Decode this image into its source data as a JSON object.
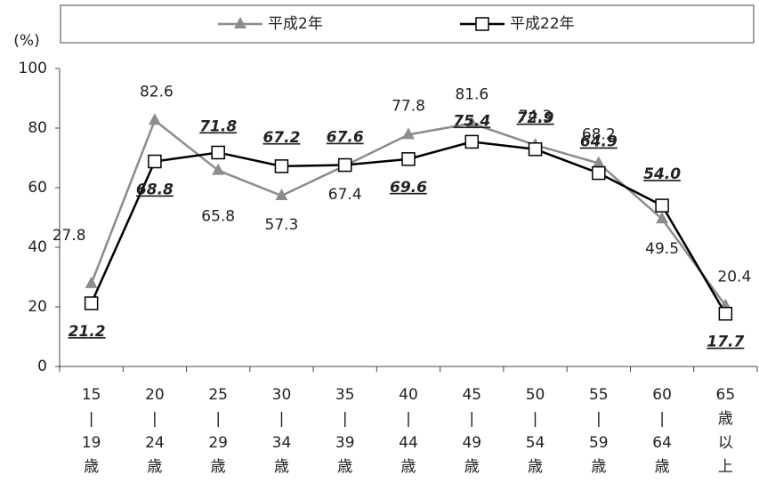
{
  "chart_data": {
    "type": "line",
    "y_label": "(%)",
    "categories": [
      [
        "15",
        "|",
        "19",
        "歳"
      ],
      [
        "20",
        "|",
        "24",
        "歳"
      ],
      [
        "25",
        "|",
        "29",
        "歳"
      ],
      [
        "30",
        "|",
        "34",
        "歳"
      ],
      [
        "35",
        "|",
        "39",
        "歳"
      ],
      [
        "40",
        "|",
        "44",
        "歳"
      ],
      [
        "45",
        "|",
        "49",
        "歳"
      ],
      [
        "50",
        "|",
        "54",
        "歳"
      ],
      [
        "55",
        "|",
        "59",
        "歳"
      ],
      [
        "60",
        "|",
        "64",
        "歳"
      ],
      [
        "65",
        "歳",
        "以",
        "上"
      ]
    ],
    "series": [
      {
        "name": "平成2年",
        "color": "#8c8c8c",
        "marker": "triangle",
        "values": [
          27.8,
          82.6,
          65.8,
          57.3,
          67.4,
          77.8,
          81.6,
          74.3,
          68.2,
          49.5,
          20.4
        ],
        "value_labels": [
          "27.8",
          "82.6",
          "65.8",
          "57.3",
          "67.4",
          "77.8",
          "81.6",
          "74.3",
          "68.2",
          "49.5",
          "20.4"
        ]
      },
      {
        "name": "平成22年",
        "color": "#000000",
        "marker": "square",
        "values": [
          21.2,
          68.8,
          71.8,
          67.2,
          67.6,
          69.6,
          75.4,
          72.9,
          64.9,
          54.0,
          17.7
        ],
        "value_labels": [
          "21.2",
          "68.8",
          "71.8",
          "67.2",
          "67.6",
          "69.6",
          "75.4",
          "72.9",
          "64.9",
          "54.0",
          "17.7"
        ]
      }
    ],
    "ylim": [
      0,
      100
    ],
    "yticks": [
      0,
      20,
      40,
      60,
      80,
      100
    ],
    "legend": "top"
  }
}
